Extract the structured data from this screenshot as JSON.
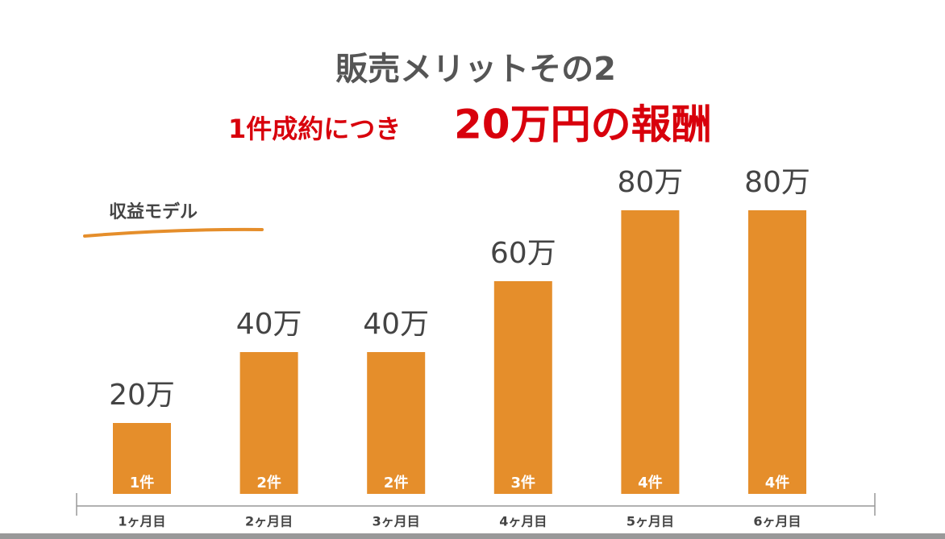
{
  "chart_data": {
    "type": "bar",
    "title": "販売メリットその2",
    "subtitle_lead": "1件成約につき",
    "subtitle_emphasis": "20万円の報酬",
    "label": "収益モデル",
    "categories": [
      "1ヶ月目",
      "2ヶ月目",
      "3ヶ月目",
      "4ヶ月目",
      "5ヶ月目",
      "6ヶ月目"
    ],
    "values": [
      20,
      40,
      40,
      60,
      80,
      80
    ],
    "value_labels": [
      "20万",
      "40万",
      "40万",
      "60万",
      "80万",
      "80万"
    ],
    "bar_notes": [
      "1件",
      "2件",
      "2件",
      "3件",
      "4件",
      "4件"
    ],
    "color": "#e58e2b",
    "ylim": [
      0,
      80
    ]
  }
}
